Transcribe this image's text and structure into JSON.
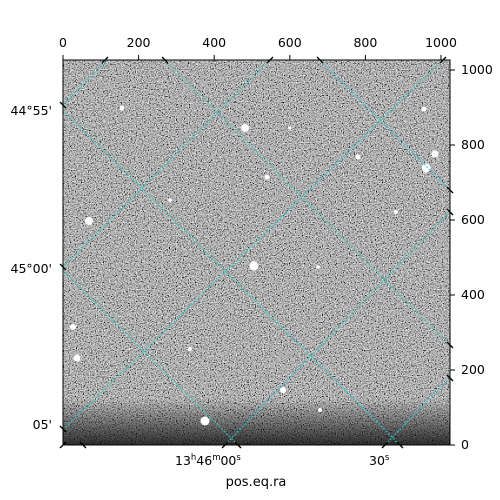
{
  "image": {
    "subject": "astronomical sky image (grayscale noise with stars)",
    "colormap": "gray",
    "grid_color": "#33cccc"
  },
  "axes": {
    "pixel_x_ticks": [
      "0",
      "200",
      "400",
      "600",
      "800",
      "1000"
    ],
    "pixel_y_ticks": [
      "0",
      "200",
      "400",
      "600",
      "800",
      "1000"
    ],
    "dec_ticks": [
      "44°55'",
      "45°00'",
      "05'"
    ],
    "ra_ticks": [
      {
        "hours": "13",
        "h": "h",
        "minutes": "46",
        "m": "m",
        "seconds": "00",
        "s": "s"
      },
      {
        "seconds": "30",
        "s": "s"
      }
    ],
    "xlabel": "pos.eq.ra"
  }
}
